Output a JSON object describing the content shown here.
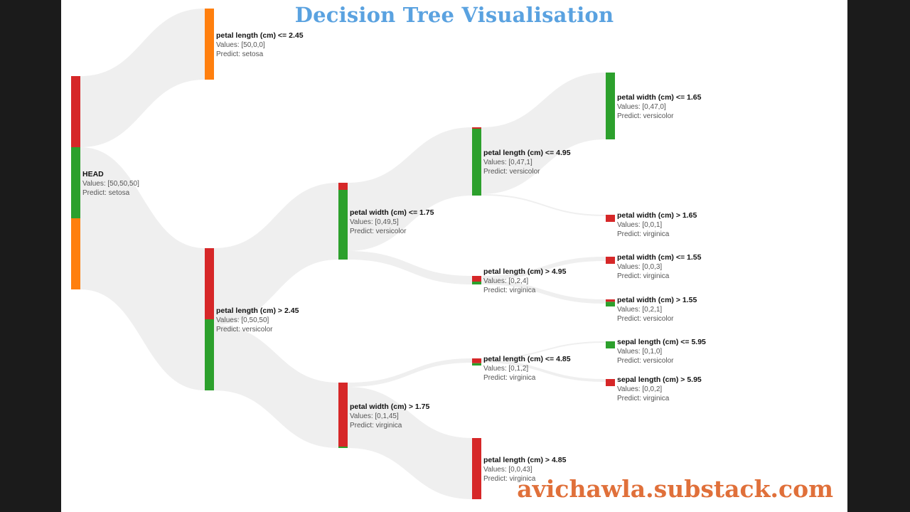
{
  "title": "Decision Tree Visualisation",
  "watermark": "avichawla.substack.com",
  "colors": {
    "class_0": "#ff7f0e",
    "class_1": "#2ca02c",
    "class_2": "#d62728",
    "link": "#efefef",
    "title": "#5aa2e0",
    "watermark": "#e0703a"
  },
  "chart_data": {
    "type": "tree",
    "nodes": [
      {
        "id": "head",
        "parent": null,
        "depth": 0,
        "title": "HEAD",
        "values_text": "Values: [50,50,50]",
        "predict_text": "Predict: setosa",
        "values": [
          50,
          50,
          50
        ]
      },
      {
        "id": "n1",
        "parent": "head",
        "depth": 1,
        "title": "petal length (cm) <= 2.45",
        "values_text": "Values: [50,0,0]",
        "predict_text": "Predict: setosa",
        "values": [
          50,
          0,
          0
        ]
      },
      {
        "id": "n2",
        "parent": "head",
        "depth": 1,
        "title": "petal length (cm) > 2.45",
        "values_text": "Values: [0,50,50]",
        "predict_text": "Predict: versicolor",
        "values": [
          0,
          50,
          50
        ]
      },
      {
        "id": "n3",
        "parent": "n2",
        "depth": 2,
        "title": "petal width (cm) <= 1.75",
        "values_text": "Values: [0,49,5]",
        "predict_text": "Predict: versicolor",
        "values": [
          0,
          49,
          5
        ]
      },
      {
        "id": "n4",
        "parent": "n2",
        "depth": 2,
        "title": "petal width (cm) > 1.75",
        "values_text": "Values: [0,1,45]",
        "predict_text": "Predict: virginica",
        "values": [
          0,
          1,
          45
        ]
      },
      {
        "id": "n5",
        "parent": "n3",
        "depth": 3,
        "title": "petal length (cm) <= 4.95",
        "values_text": "Values: [0,47,1]",
        "predict_text": "Predict: versicolor",
        "values": [
          0,
          47,
          1
        ]
      },
      {
        "id": "n6",
        "parent": "n3",
        "depth": 3,
        "title": "petal length (cm) > 4.95",
        "values_text": "Values: [0,2,4]",
        "predict_text": "Predict: virginica",
        "values": [
          0,
          2,
          4
        ]
      },
      {
        "id": "n7",
        "parent": "n4",
        "depth": 3,
        "title": "petal length (cm) <= 4.85",
        "values_text": "Values: [0,1,2]",
        "predict_text": "Predict: virginica",
        "values": [
          0,
          1,
          2
        ]
      },
      {
        "id": "n8",
        "parent": "n4",
        "depth": 3,
        "title": "petal length (cm) > 4.85",
        "values_text": "Values: [0,0,43]",
        "predict_text": "Predict: virginica",
        "values": [
          0,
          0,
          43
        ]
      },
      {
        "id": "n9",
        "parent": "n5",
        "depth": 4,
        "title": "petal width (cm) <= 1.65",
        "values_text": "Values: [0,47,0]",
        "predict_text": "Predict: versicolor",
        "values": [
          0,
          47,
          0
        ]
      },
      {
        "id": "n10",
        "parent": "n5",
        "depth": 4,
        "title": "petal width (cm) > 1.65",
        "values_text": "Values: [0,0,1]",
        "predict_text": "Predict: virginica",
        "values": [
          0,
          0,
          1
        ]
      },
      {
        "id": "n11",
        "parent": "n6",
        "depth": 4,
        "title": "petal width (cm) <= 1.55",
        "values_text": "Values: [0,0,3]",
        "predict_text": "Predict: virginica",
        "values": [
          0,
          0,
          3
        ]
      },
      {
        "id": "n12",
        "parent": "n6",
        "depth": 4,
        "title": "petal width (cm) > 1.55",
        "values_text": "Values: [0,2,1]",
        "predict_text": "Predict: versicolor",
        "values": [
          0,
          2,
          1
        ]
      },
      {
        "id": "n13",
        "parent": "n7",
        "depth": 4,
        "title": "sepal length (cm) <= 5.95",
        "values_text": "Values: [0,1,0]",
        "predict_text": "Predict: versicolor",
        "values": [
          0,
          1,
          0
        ]
      },
      {
        "id": "n14",
        "parent": "n7",
        "depth": 4,
        "title": "sepal length (cm) > 5.95",
        "values_text": "Values: [0,0,2]",
        "predict_text": "Predict: virginica",
        "values": [
          0,
          0,
          2
        ]
      }
    ]
  }
}
